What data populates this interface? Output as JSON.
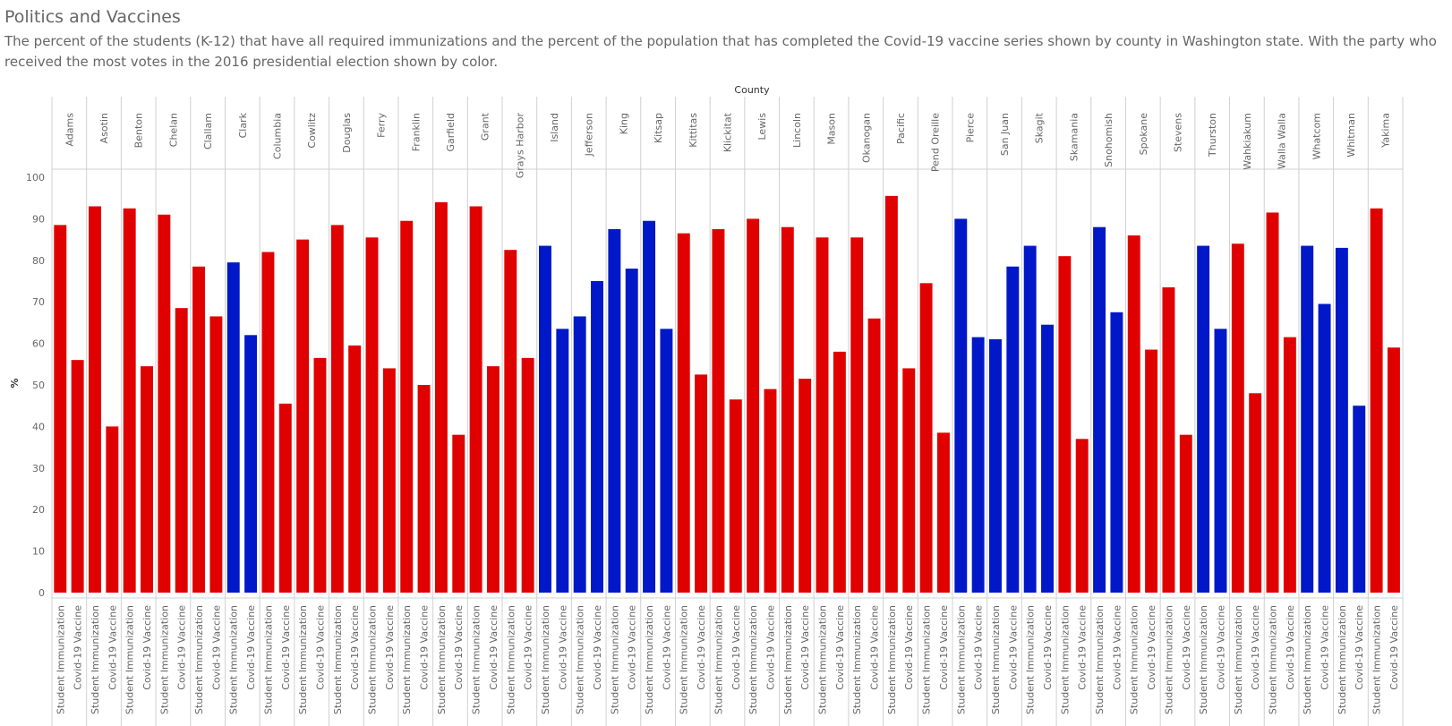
{
  "header": {
    "title": "Politics and Vaccines",
    "subtitle": "The percent of the students (K-12) that have all required immunizations and the percent of the population that has completed the Covid-19 vaccine series shown by county in Washington state.  With the party who received the most votes in the 2016 presidential election shown by color."
  },
  "colors": {
    "republican": "#e00000",
    "democrat": "#0018c8",
    "grid": "#d0d0d0",
    "text": "#666666"
  },
  "chart_data": {
    "type": "bar",
    "title": "Politics and Vaccines",
    "column_header": "County",
    "ylabel": "%",
    "ylim": [
      0,
      100
    ],
    "yticks": [
      0,
      10,
      20,
      30,
      40,
      50,
      60,
      70,
      80,
      90,
      100
    ],
    "measures": [
      "Student Immunization",
      "Covid-19 Vaccine"
    ],
    "counties": [
      {
        "name": "Adams",
        "party": "R",
        "values": [
          88.5,
          56
        ]
      },
      {
        "name": "Asotin",
        "party": "R",
        "values": [
          93,
          40
        ]
      },
      {
        "name": "Benton",
        "party": "R",
        "values": [
          92.5,
          54.5
        ]
      },
      {
        "name": "Chelan",
        "party": "R",
        "values": [
          91,
          68.5
        ]
      },
      {
        "name": "Clallam",
        "party": "R",
        "values": [
          78.5,
          66.5
        ]
      },
      {
        "name": "Clark",
        "party": "D",
        "values": [
          79.5,
          62
        ]
      },
      {
        "name": "Columbia",
        "party": "R",
        "values": [
          82,
          45.5
        ]
      },
      {
        "name": "Cowlitz",
        "party": "R",
        "values": [
          85,
          56.5
        ]
      },
      {
        "name": "Douglas",
        "party": "R",
        "values": [
          88.5,
          59.5
        ]
      },
      {
        "name": "Ferry",
        "party": "R",
        "values": [
          85.5,
          54
        ]
      },
      {
        "name": "Franklin",
        "party": "R",
        "values": [
          89.5,
          50
        ]
      },
      {
        "name": "Garfield",
        "party": "R",
        "values": [
          94,
          38
        ]
      },
      {
        "name": "Grant",
        "party": "R",
        "values": [
          93,
          54.5
        ]
      },
      {
        "name": "Grays Harbor",
        "party": "R",
        "values": [
          82.5,
          56.5
        ]
      },
      {
        "name": "Island",
        "party": "D",
        "values": [
          83.5,
          63.5
        ]
      },
      {
        "name": "Jefferson",
        "party": "D",
        "values": [
          66.5,
          75
        ]
      },
      {
        "name": "King",
        "party": "D",
        "values": [
          87.5,
          78
        ]
      },
      {
        "name": "Kitsap",
        "party": "D",
        "values": [
          89.5,
          63.5
        ]
      },
      {
        "name": "Kittitas",
        "party": "R",
        "values": [
          86.5,
          52.5
        ]
      },
      {
        "name": "Klickitat",
        "party": "R",
        "values": [
          87.5,
          46.5
        ]
      },
      {
        "name": "Lewis",
        "party": "R",
        "values": [
          90,
          49
        ]
      },
      {
        "name": "Lincoln",
        "party": "R",
        "values": [
          88,
          51.5
        ]
      },
      {
        "name": "Mason",
        "party": "R",
        "values": [
          85.5,
          58
        ]
      },
      {
        "name": "Okanogan",
        "party": "R",
        "values": [
          85.5,
          66
        ]
      },
      {
        "name": "Pacific",
        "party": "R",
        "values": [
          95.5,
          54
        ]
      },
      {
        "name": "Pend Oreille",
        "party": "R",
        "values": [
          74.5,
          38.5
        ]
      },
      {
        "name": "Pierce",
        "party": "D",
        "values": [
          90,
          61.5
        ]
      },
      {
        "name": "San Juan",
        "party": "D",
        "values": [
          61,
          78.5
        ]
      },
      {
        "name": "Skagit",
        "party": "D",
        "values": [
          83.5,
          64.5
        ]
      },
      {
        "name": "Skamania",
        "party": "R",
        "values": [
          81,
          37
        ]
      },
      {
        "name": "Snohomish",
        "party": "D",
        "values": [
          88,
          67.5
        ]
      },
      {
        "name": "Spokane",
        "party": "R",
        "values": [
          86,
          58.5
        ]
      },
      {
        "name": "Stevens",
        "party": "R",
        "values": [
          73.5,
          38
        ]
      },
      {
        "name": "Thurston",
        "party": "D",
        "values": [
          83.5,
          63.5
        ]
      },
      {
        "name": "Wahkiakum",
        "party": "R",
        "values": [
          84,
          48
        ]
      },
      {
        "name": "Walla Walla",
        "party": "R",
        "values": [
          91.5,
          61.5
        ]
      },
      {
        "name": "Whatcom",
        "party": "D",
        "values": [
          83.5,
          69.5
        ]
      },
      {
        "name": "Whitman",
        "party": "D",
        "values": [
          83,
          45
        ]
      },
      {
        "name": "Yakima",
        "party": "R",
        "values": [
          92.5,
          59
        ]
      }
    ]
  }
}
